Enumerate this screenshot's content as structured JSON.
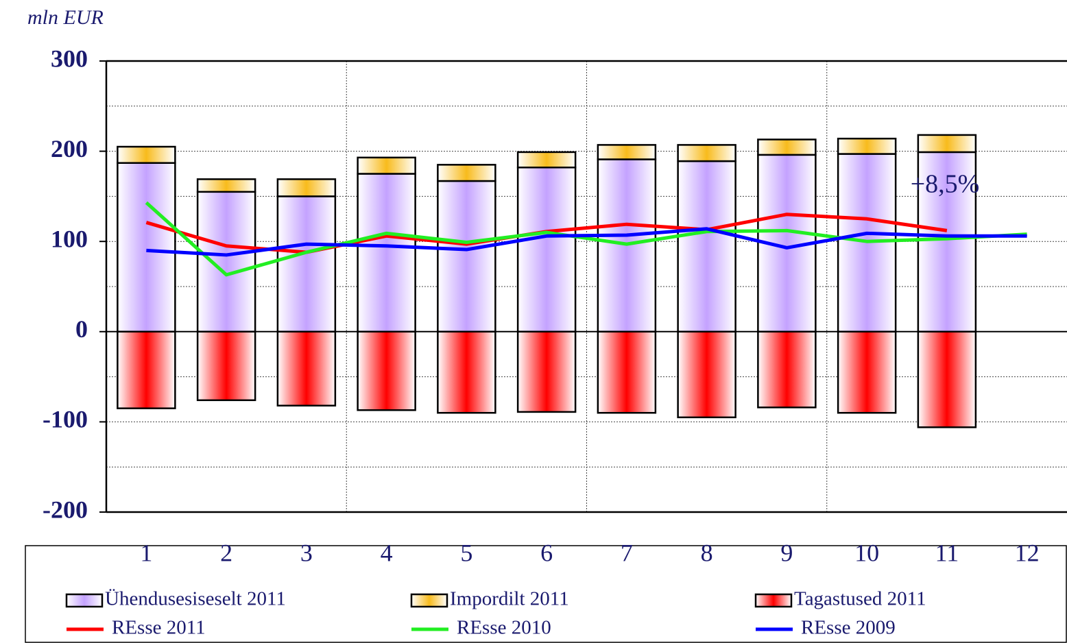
{
  "chart_data": {
    "type": "bar",
    "y_label": "mln EUR",
    "annotation": "+8,5%",
    "categories": [
      "1",
      "2",
      "3",
      "4",
      "5",
      "6",
      "7",
      "8",
      "9",
      "10",
      "11",
      "12"
    ],
    "ylim": [
      -200,
      300
    ],
    "yticks": [
      -200,
      -100,
      0,
      100,
      200,
      300
    ],
    "grid": true,
    "series": [
      {
        "name": "Ühendusesiseselt 2011",
        "type": "bar",
        "color": "#c4a2ff",
        "values": [
          187,
          155,
          150,
          175,
          167,
          182,
          191,
          189,
          196,
          197,
          199,
          null
        ]
      },
      {
        "name": "Impordilt 2011",
        "type": "bar",
        "color": "#f8bb1c",
        "values": [
          18,
          14,
          19,
          18,
          18,
          17,
          16,
          18,
          17,
          17,
          19,
          null
        ]
      },
      {
        "name": "Tagastused 2011",
        "type": "bar",
        "color": "#ff0000",
        "values": [
          -85,
          -76,
          -82,
          -87,
          -90,
          -89,
          -90,
          -95,
          -84,
          -90,
          -106,
          null
        ]
      },
      {
        "name": "REsse 2011",
        "type": "line",
        "color": "#ff0000",
        "values": [
          121,
          95,
          88,
          106,
          97,
          111,
          119,
          113,
          130,
          125,
          112,
          null
        ]
      },
      {
        "name": "REsse 2010",
        "type": "line",
        "color": "#22ee22",
        "values": [
          143,
          63,
          88,
          109,
          99,
          110,
          97,
          111,
          112,
          100,
          103,
          108
        ]
      },
      {
        "name": "REsse 2009",
        "type": "line",
        "color": "#0000ff",
        "values": [
          90,
          85,
          97,
          95,
          91,
          106,
          107,
          114,
          93,
          109,
          106,
          106
        ]
      }
    ]
  }
}
